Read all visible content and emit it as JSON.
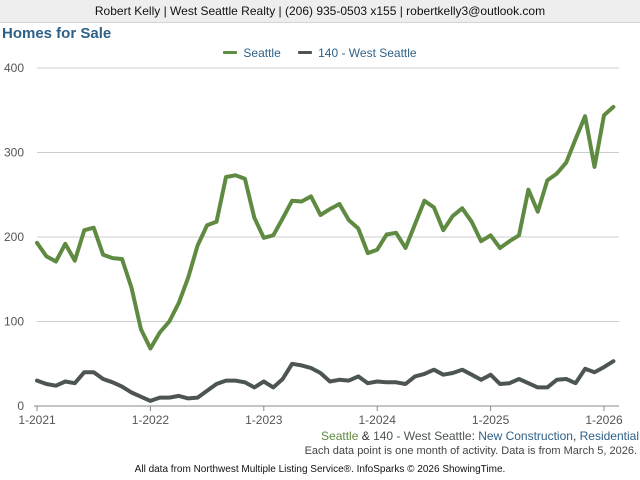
{
  "header": {
    "contact": "Robert Kelly | West Seattle Realty | (206) 935-0503 x155 | robertkelly3@outlook.com"
  },
  "colors": {
    "seattle": "#5f8a41",
    "west_seattle": "#4d5552",
    "title": "#2e6188",
    "grid": "#cccccc"
  },
  "caption": {
    "series_1": "Seattle",
    "amp": " & ",
    "series_2": "140 - West Seattle",
    "colon": ": ",
    "segment_1": "New Construction",
    "comma": ", ",
    "segment_2": "Residential"
  },
  "note": "Each data point is one month of activity. Data is from March 5, 2026.",
  "footer": "All data from Northwest Multiple Listing Service®. InfoSparks © 2026 ShowingTime.",
  "chart_data": {
    "type": "line",
    "title": "Homes for Sale",
    "ylim": [
      0,
      400
    ],
    "yticks": [
      0,
      100,
      200,
      300,
      400
    ],
    "xticks": [
      "1-2021",
      "1-2022",
      "1-2023",
      "1-2024",
      "1-2025",
      "1-2026"
    ],
    "grid": true,
    "legend_position": "top-center",
    "x": [
      "1-2021",
      "2-2021",
      "3-2021",
      "4-2021",
      "5-2021",
      "6-2021",
      "7-2021",
      "8-2021",
      "9-2021",
      "10-2021",
      "11-2021",
      "12-2021",
      "1-2022",
      "2-2022",
      "3-2022",
      "4-2022",
      "5-2022",
      "6-2022",
      "7-2022",
      "8-2022",
      "9-2022",
      "10-2022",
      "11-2022",
      "12-2022",
      "1-2023",
      "2-2023",
      "3-2023",
      "4-2023",
      "5-2023",
      "6-2023",
      "7-2023",
      "8-2023",
      "9-2023",
      "10-2023",
      "11-2023",
      "12-2023",
      "1-2024",
      "2-2024",
      "3-2024",
      "4-2024",
      "5-2024",
      "6-2024",
      "7-2024",
      "8-2024",
      "9-2024",
      "10-2024",
      "11-2024",
      "12-2024",
      "1-2025",
      "2-2025",
      "3-2025",
      "4-2025",
      "5-2025",
      "6-2025",
      "7-2025",
      "8-2025",
      "9-2025",
      "10-2025",
      "11-2025",
      "12-2025",
      "1-2026",
      "2-2026"
    ],
    "series": [
      {
        "name": "Seattle",
        "color": "#5f8a41",
        "values": [
          193,
          177,
          171,
          192,
          172,
          208,
          211,
          179,
          175,
          174,
          140,
          91,
          68,
          87,
          100,
          122,
          152,
          190,
          214,
          218,
          271,
          273,
          269,
          223,
          199,
          202,
          222,
          243,
          242,
          248,
          226,
          233,
          239,
          220,
          210,
          181,
          185,
          203,
          205,
          187,
          215,
          243,
          235,
          208,
          225,
          234,
          218,
          195,
          202,
          187,
          195,
          202,
          256,
          230,
          267,
          275,
          288,
          316,
          343,
          283,
          344,
          354
        ]
      },
      {
        "name": "140 - West Seattle",
        "color": "#4d5552",
        "values": [
          30,
          26,
          24,
          29,
          27,
          40,
          40,
          32,
          28,
          23,
          16,
          11,
          6,
          10,
          10,
          12,
          9,
          10,
          18,
          26,
          30,
          30,
          28,
          22,
          29,
          22,
          32,
          50,
          48,
          45,
          39,
          29,
          31,
          30,
          35,
          27,
          29,
          28,
          28,
          26,
          35,
          38,
          43,
          37,
          39,
          43,
          37,
          31,
          37,
          26,
          27,
          32,
          27,
          22,
          22,
          31,
          32,
          27,
          44,
          40,
          46,
          53
        ]
      }
    ]
  }
}
